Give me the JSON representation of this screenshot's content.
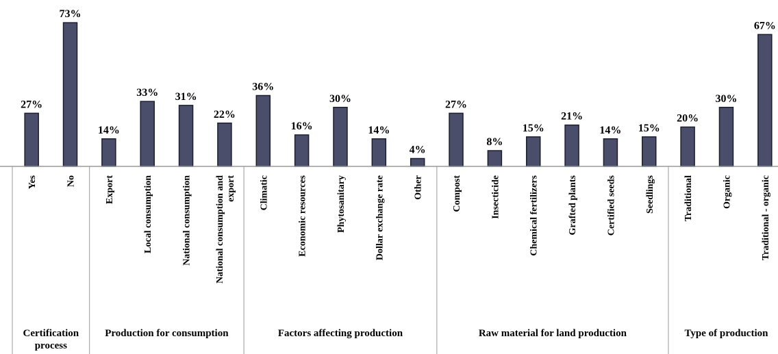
{
  "chart_data": {
    "type": "bar",
    "ylim": [
      0,
      80
    ],
    "grid": false,
    "colors": {
      "bar_fill": "#4a4e6a",
      "bar_stroke": "#1c1e2e",
      "axis": "#9a9a9a"
    },
    "groups": [
      {
        "name": [
          "Certification",
          "process"
        ],
        "categories": [
          {
            "label": [
              "Yes"
            ],
            "value": 27,
            "value_label": "27%"
          },
          {
            "label": [
              "No"
            ],
            "value": 73,
            "value_label": "73%"
          }
        ]
      },
      {
        "name": [
          "Production for consumption"
        ],
        "categories": [
          {
            "label": [
              "Export"
            ],
            "value": 14,
            "value_label": "14%"
          },
          {
            "label": [
              "Local consumption"
            ],
            "value": 33,
            "value_label": "33%"
          },
          {
            "label": [
              "National consumption"
            ],
            "value": 31,
            "value_label": "31%"
          },
          {
            "label": [
              "National consumption and",
              "export"
            ],
            "value": 22,
            "value_label": "22%"
          }
        ]
      },
      {
        "name": [
          "Factors affecting production"
        ],
        "categories": [
          {
            "label": [
              "Climatic"
            ],
            "value": 36,
            "value_label": "36%"
          },
          {
            "label": [
              "Economic resources"
            ],
            "value": 16,
            "value_label": "16%"
          },
          {
            "label": [
              "Phytosanitary"
            ],
            "value": 30,
            "value_label": "30%"
          },
          {
            "label": [
              "Dollar exchange rate"
            ],
            "value": 14,
            "value_label": "14%"
          },
          {
            "label": [
              "Other"
            ],
            "value": 4,
            "value_label": "4%"
          }
        ]
      },
      {
        "name": [
          "Raw material for land production"
        ],
        "categories": [
          {
            "label": [
              "Compost"
            ],
            "value": 27,
            "value_label": "27%"
          },
          {
            "label": [
              "Insecticide"
            ],
            "value": 8,
            "value_label": "8%"
          },
          {
            "label": [
              "Chemical fertilizers"
            ],
            "value": 15,
            "value_label": "15%"
          },
          {
            "label": [
              "Grafted plants"
            ],
            "value": 21,
            "value_label": "21%"
          },
          {
            "label": [
              "Certified seeds"
            ],
            "value": 14,
            "value_label": "14%"
          },
          {
            "label": [
              "Seedlings"
            ],
            "value": 15,
            "value_label": "15%"
          }
        ]
      },
      {
        "name": [
          "Type of production"
        ],
        "categories": [
          {
            "label": [
              "Traditional"
            ],
            "value": 20,
            "value_label": "20%"
          },
          {
            "label": [
              "Organic"
            ],
            "value": 30,
            "value_label": "30%"
          },
          {
            "label": [
              "Traditional - organic"
            ],
            "value": 67,
            "value_label": "67%"
          }
        ]
      }
    ]
  }
}
